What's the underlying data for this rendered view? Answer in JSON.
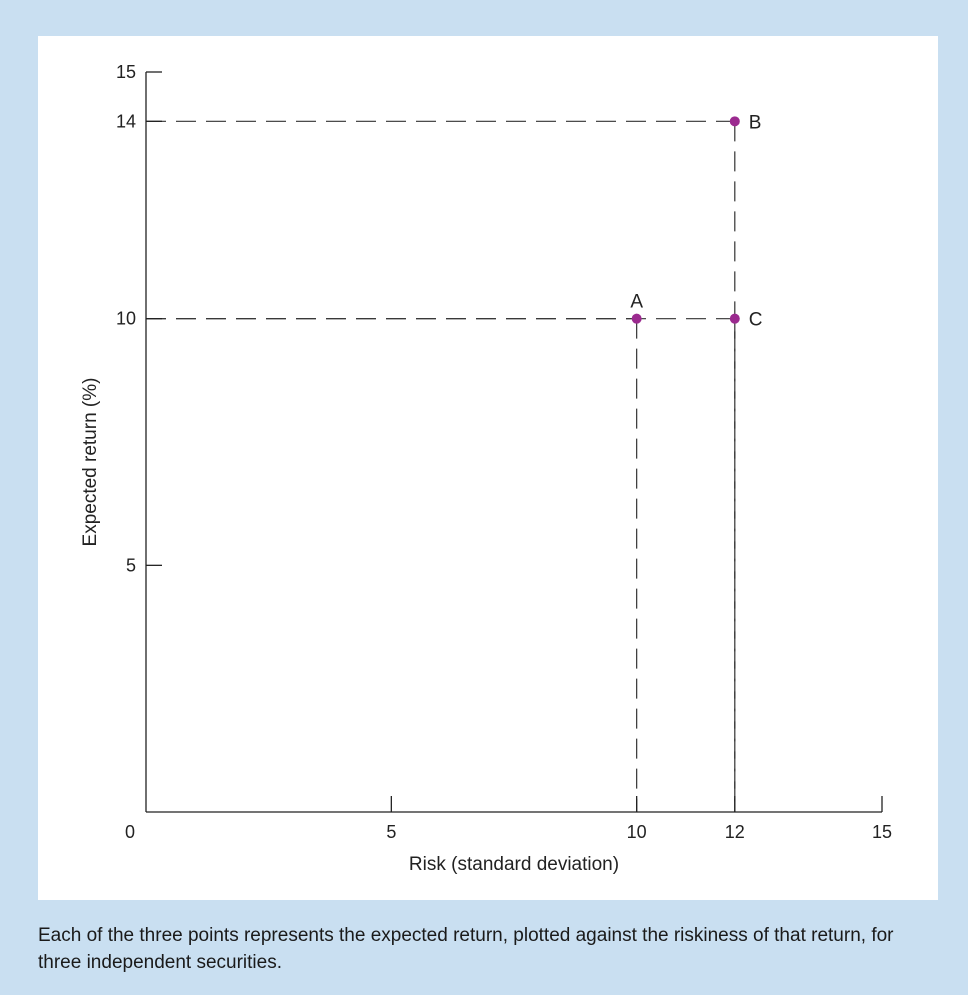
{
  "chart_data": {
    "type": "scatter",
    "xlabel": "Risk (standard deviation)",
    "ylabel": "Expected return (%)",
    "xlim": [
      0,
      15
    ],
    "ylim": [
      0,
      15
    ],
    "x_ticks": [
      0,
      5,
      10,
      12,
      15
    ],
    "y_ticks": [
      5,
      10,
      14,
      15
    ],
    "grid": false,
    "point_color": "#9b2a8f",
    "points": [
      {
        "label": "A",
        "x": 10,
        "y": 10
      },
      {
        "label": "B",
        "x": 12,
        "y": 14
      },
      {
        "label": "C",
        "x": 12,
        "y": 10
      }
    ]
  },
  "caption": "Each of the three points represents the expected return, plotted against the riskiness of that return, for three independent securities."
}
